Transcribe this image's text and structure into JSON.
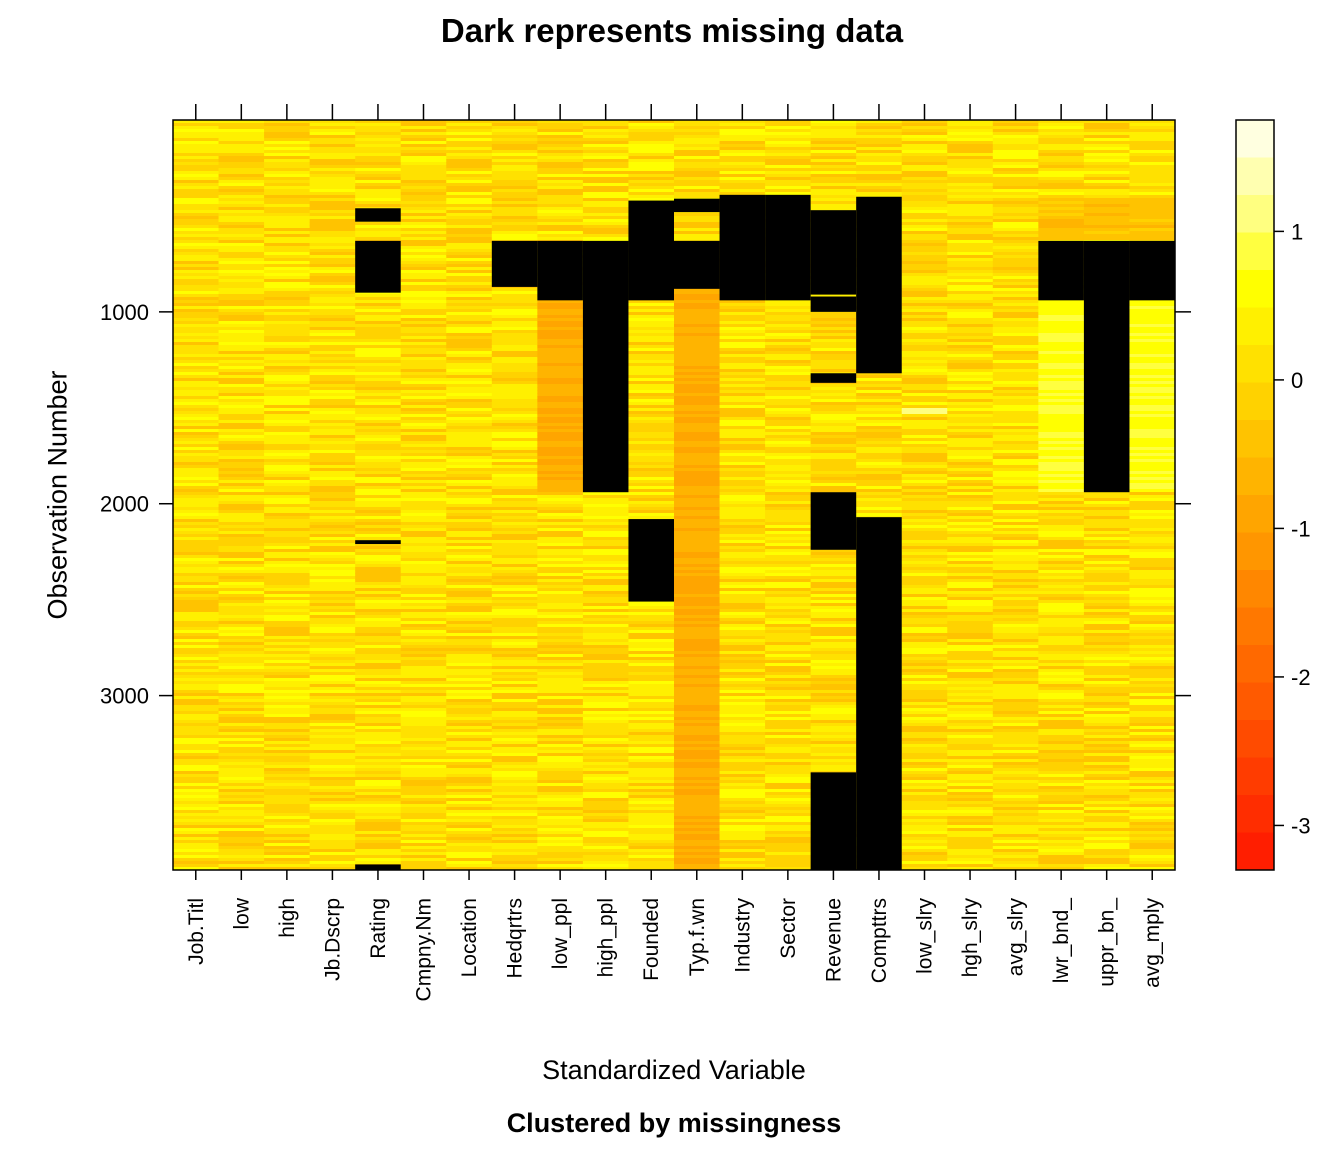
{
  "chart_data": {
    "type": "heatmap",
    "title": "Dark represents missing data",
    "xlabel": "Standardized Variable",
    "ylabel": "Observation Number",
    "subtitle": "Clustered by missingness",
    "n_obs": 3909,
    "y_ticks": [
      1000,
      2000,
      3000
    ],
    "y_tick_labels": [
      "1000",
      "2000",
      "3000"
    ],
    "variables": [
      "Job.Titl",
      "low",
      "high",
      "Jb.Dscrp",
      "Rating",
      "Cmpny.Nm",
      "Location",
      "Hedqrtrs",
      "low_ppl",
      "high_ppl",
      "Founded",
      "Typ.f.wn",
      "Industry",
      "Sector",
      "Revenue",
      "Compttrs",
      "low_slry",
      "hgh_slry",
      "avg_slry",
      "lwr_bnd_",
      "uppr_bn_",
      "avg_mply"
    ],
    "value_range": [
      -3.3,
      1.75
    ],
    "colorbar_ticks": [
      1,
      0,
      -1,
      -2,
      -3
    ],
    "colorbar_tick_labels": [
      "1",
      "0",
      "-1",
      "-2",
      "-3"
    ],
    "missing_color": "#000000",
    "palette_high_to_low": [
      "#FFFFE0",
      "#FFFFB0",
      "#FFFF80",
      "#FFFF40",
      "#FFFF00",
      "#FFF000",
      "#FFE100",
      "#FFD200",
      "#FFC300",
      "#FFB400",
      "#FFA500",
      "#FF9600",
      "#FF8700",
      "#FF7800",
      "#FF6900",
      "#FF5A00",
      "#FF4B00",
      "#FF3C00",
      "#FF2D00",
      "#FF1E00"
    ],
    "missing_blocks": [
      {
        "variable": "Rating",
        "from": 460,
        "to": 530
      },
      {
        "variable": "Rating",
        "from": 630,
        "to": 900
      },
      {
        "variable": "Rating",
        "from": 2190,
        "to": 2210
      },
      {
        "variable": "Rating",
        "from": 3880,
        "to": 3909
      },
      {
        "variable": "Hedqrtrs",
        "from": 630,
        "to": 870
      },
      {
        "variable": "low_ppl",
        "from": 630,
        "to": 940
      },
      {
        "variable": "high_ppl",
        "from": 630,
        "to": 1940
      },
      {
        "variable": "Founded",
        "from": 420,
        "to": 940
      },
      {
        "variable": "Founded",
        "from": 2080,
        "to": 2510
      },
      {
        "variable": "Typ.f.wn",
        "from": 410,
        "to": 480
      },
      {
        "variable": "Typ.f.wn",
        "from": 630,
        "to": 880
      },
      {
        "variable": "Industry",
        "from": 390,
        "to": 940
      },
      {
        "variable": "Sector",
        "from": 390,
        "to": 940
      },
      {
        "variable": "Revenue",
        "from": 470,
        "to": 910
      },
      {
        "variable": "Revenue",
        "from": 920,
        "to": 1000
      },
      {
        "variable": "Revenue",
        "from": 1320,
        "to": 1370
      },
      {
        "variable": "Revenue",
        "from": 1940,
        "to": 2240
      },
      {
        "variable": "Revenue",
        "from": 3400,
        "to": 3909
      },
      {
        "variable": "Compttrs",
        "from": 400,
        "to": 1320
      },
      {
        "variable": "Compttrs",
        "from": 2070,
        "to": 3909
      },
      {
        "variable": "lwr_bnd_",
        "from": 630,
        "to": 940
      },
      {
        "variable": "uppr_bn_",
        "from": 630,
        "to": 1940
      },
      {
        "variable": "avg_mply",
        "from": 630,
        "to": 940
      }
    ]
  }
}
